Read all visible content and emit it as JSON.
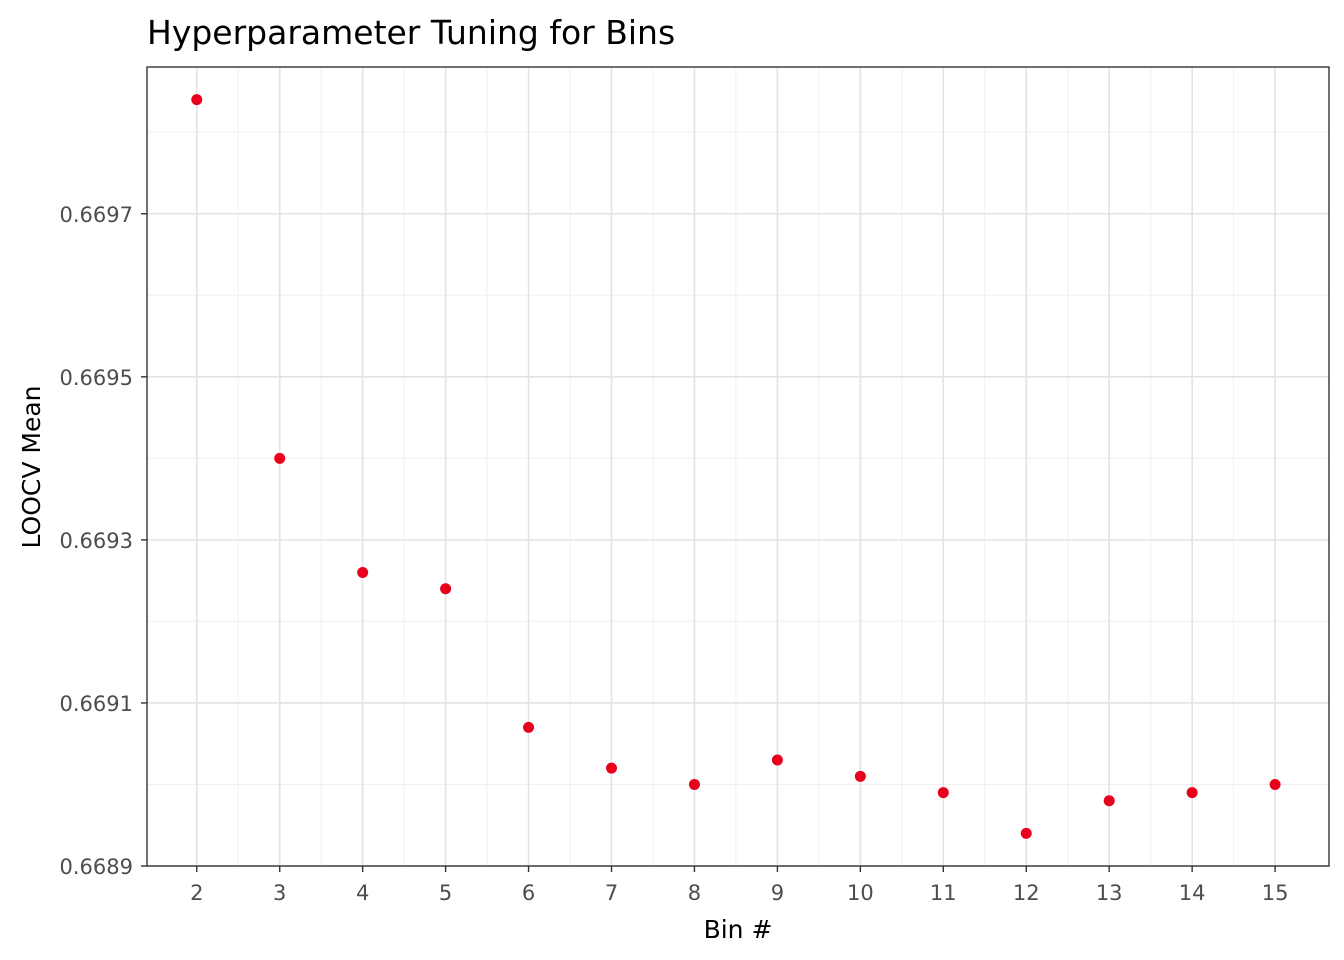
{
  "chart_data": {
    "type": "scatter",
    "title": "Hyperparameter Tuning for Bins",
    "xlabel": "Bin #",
    "ylabel": "LOOCV Mean",
    "x": [
      2,
      3,
      4,
      5,
      6,
      7,
      8,
      9,
      10,
      11,
      12,
      13,
      14,
      15
    ],
    "y": [
      0.66984,
      0.6694,
      0.66926,
      0.66924,
      0.66907,
      0.66902,
      0.669,
      0.66903,
      0.66901,
      0.66899,
      0.66894,
      0.66898,
      0.66899,
      0.669
    ],
    "x_ticks": [
      "2",
      "3",
      "4",
      "5",
      "6",
      "7",
      "8",
      "9",
      "10",
      "11",
      "12",
      "13",
      "14",
      "15"
    ],
    "y_ticks": [
      "0.6689",
      "0.6691",
      "0.6693",
      "0.6695",
      "0.6697"
    ],
    "xlim": [
      1.4,
      15.65
    ],
    "ylim": [
      0.6689,
      0.66988
    ],
    "grid": true,
    "point_color": "#e8001c"
  }
}
